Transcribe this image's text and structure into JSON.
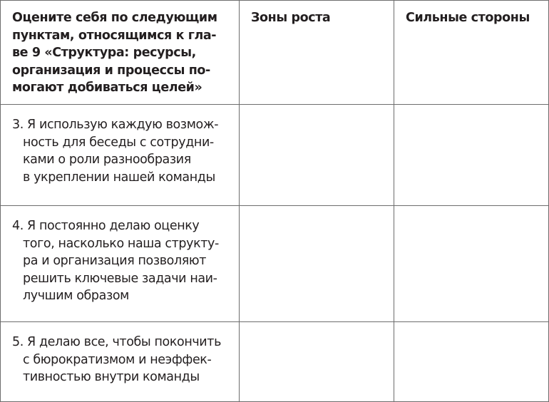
{
  "header": {
    "col1_lines": [
      "Оцените себя по следующим",
      "пунктам, относящимся к гла-",
      "ве 9 «Структура: ресурсы,",
      "организация и процессы по-",
      "могают добиваться целей»"
    ],
    "col2": "Зоны роста",
    "col3": "Сильные стороны"
  },
  "rows": [
    {
      "lines": [
        "3. Я использую каждую возмож-",
        "ность для беседы с сотрудни-",
        "ками о роли разнообразия",
        "в укреплении нашей команды"
      ]
    },
    {
      "lines": [
        "4. Я постоянно делаю оценку",
        "того, насколько наша структу-",
        "ра и организация позволяют",
        "решить ключевые задачи наи-",
        "лучшим образом"
      ]
    },
    {
      "lines": [
        "5. Я делаю все, чтобы покончить",
        "с бюрократизмом и неэффек-",
        "тивностью внутри команды"
      ]
    }
  ]
}
